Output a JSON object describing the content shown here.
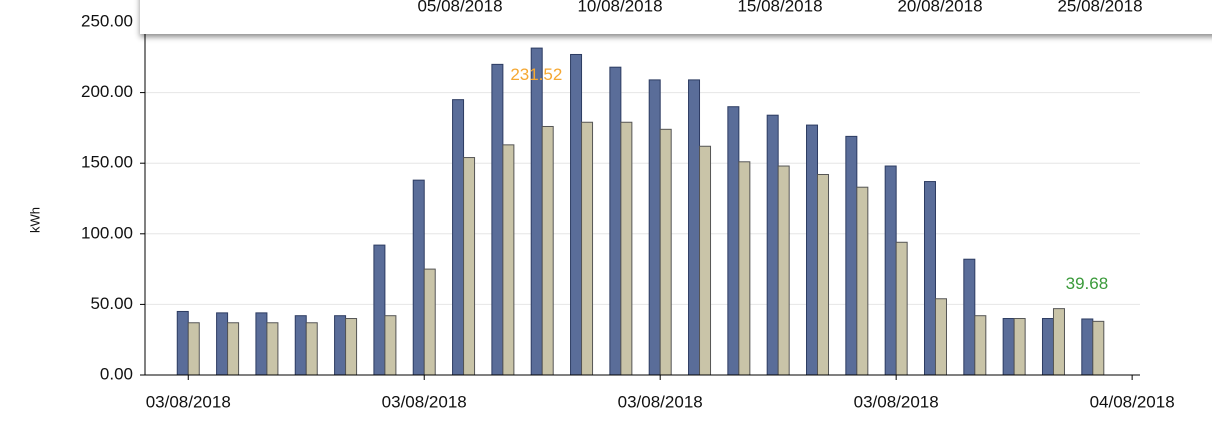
{
  "chart_data": {
    "type": "bar",
    "y_label": "kWh",
    "x": [
      0,
      1,
      2,
      3,
      4,
      5,
      6,
      7,
      8,
      9,
      10,
      11,
      12,
      13,
      14,
      15,
      16,
      17,
      18,
      19,
      20,
      21,
      22,
      23
    ],
    "series": [
      {
        "color": "#5a6d99",
        "values": [
          45,
          44,
          44,
          42,
          42,
          92,
          138,
          195,
          220,
          231.52,
          227,
          218,
          209,
          209,
          190,
          184,
          177,
          169,
          148,
          137,
          82,
          40,
          40,
          39.68
        ]
      },
      {
        "color": "#c9c4a8",
        "values": [
          37,
          37,
          37,
          37,
          40,
          42,
          75,
          154,
          163,
          176,
          179,
          179,
          174,
          162,
          151,
          148,
          142,
          133,
          94,
          54,
          42,
          40,
          47,
          38
        ]
      }
    ],
    "xlim": [
      -1.1,
      24.2
    ],
    "xticks": [
      {
        "value": 0,
        "label": "03/08/2018"
      },
      {
        "value": 6,
        "label": "03/08/2018"
      },
      {
        "value": 12,
        "label": "03/08/2018"
      },
      {
        "value": 18,
        "label": "03/08/2018"
      },
      {
        "value": 24,
        "label": "04/08/2018"
      }
    ],
    "ylim": [
      0,
      250
    ],
    "yticks": [
      {
        "value": 0,
        "label": "0.00"
      },
      {
        "value": 50,
        "label": "50.00"
      },
      {
        "value": 100,
        "label": "100.00"
      },
      {
        "value": 150,
        "label": "150.00"
      },
      {
        "value": 200,
        "label": "200.00"
      },
      {
        "value": 250,
        "label": "250.00"
      }
    ],
    "grid": true,
    "annotations": [
      {
        "text": "231.52",
        "x": 8.85,
        "y": 212,
        "color": "#f5a833"
      },
      {
        "text": "39.68",
        "x": 22.85,
        "y": 64,
        "color": "#3a9a3a"
      }
    ],
    "top_strip_labels": [
      "05/08/2018",
      "10/08/2018",
      "15/08/2018",
      "20/08/2018",
      "25/08/2018"
    ]
  }
}
